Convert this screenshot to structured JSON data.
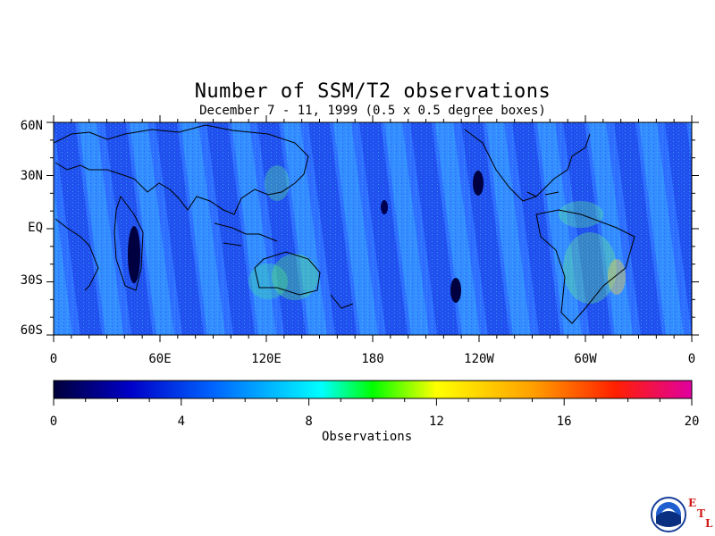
{
  "title": "Number of SSM/T2 observations",
  "subtitle": "December 7 - 11, 1999 (0.5 x 0.5 degree boxes)",
  "y_labels": [
    "60N",
    "30N",
    "EQ",
    "30S",
    "60S"
  ],
  "x_labels": [
    "0",
    "60E",
    "120E",
    "180",
    "120W",
    "60W",
    "0"
  ],
  "colorbar": {
    "ticks": [
      "0",
      "4",
      "8",
      "12",
      "16",
      "20"
    ],
    "range": [
      0,
      20
    ],
    "title": "Observations",
    "colors": [
      "#00003a",
      "#0000c8",
      "#0064ff",
      "#00c8ff",
      "#00ffff",
      "#00ff00",
      "#ffff00",
      "#ffa000",
      "#ff2000",
      "#e000a0"
    ]
  },
  "logo": {
    "name": "NOAA",
    "letters": [
      "E",
      "T",
      "L"
    ]
  }
}
